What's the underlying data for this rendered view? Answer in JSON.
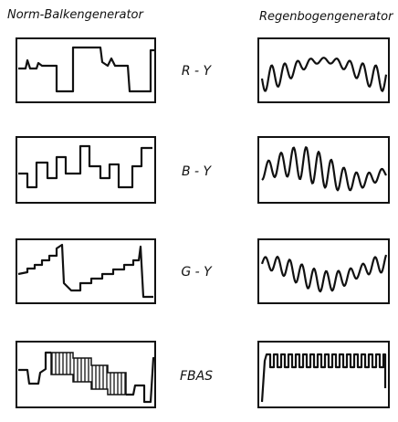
{
  "header": {
    "left_title": "Norm-Balkengenerator",
    "right_title": "Regenbogengenerator"
  },
  "rows": [
    {
      "label": "R - Y"
    },
    {
      "label": "B - Y"
    },
    {
      "label": "G - Y"
    },
    {
      "label": "FBAS"
    }
  ]
}
